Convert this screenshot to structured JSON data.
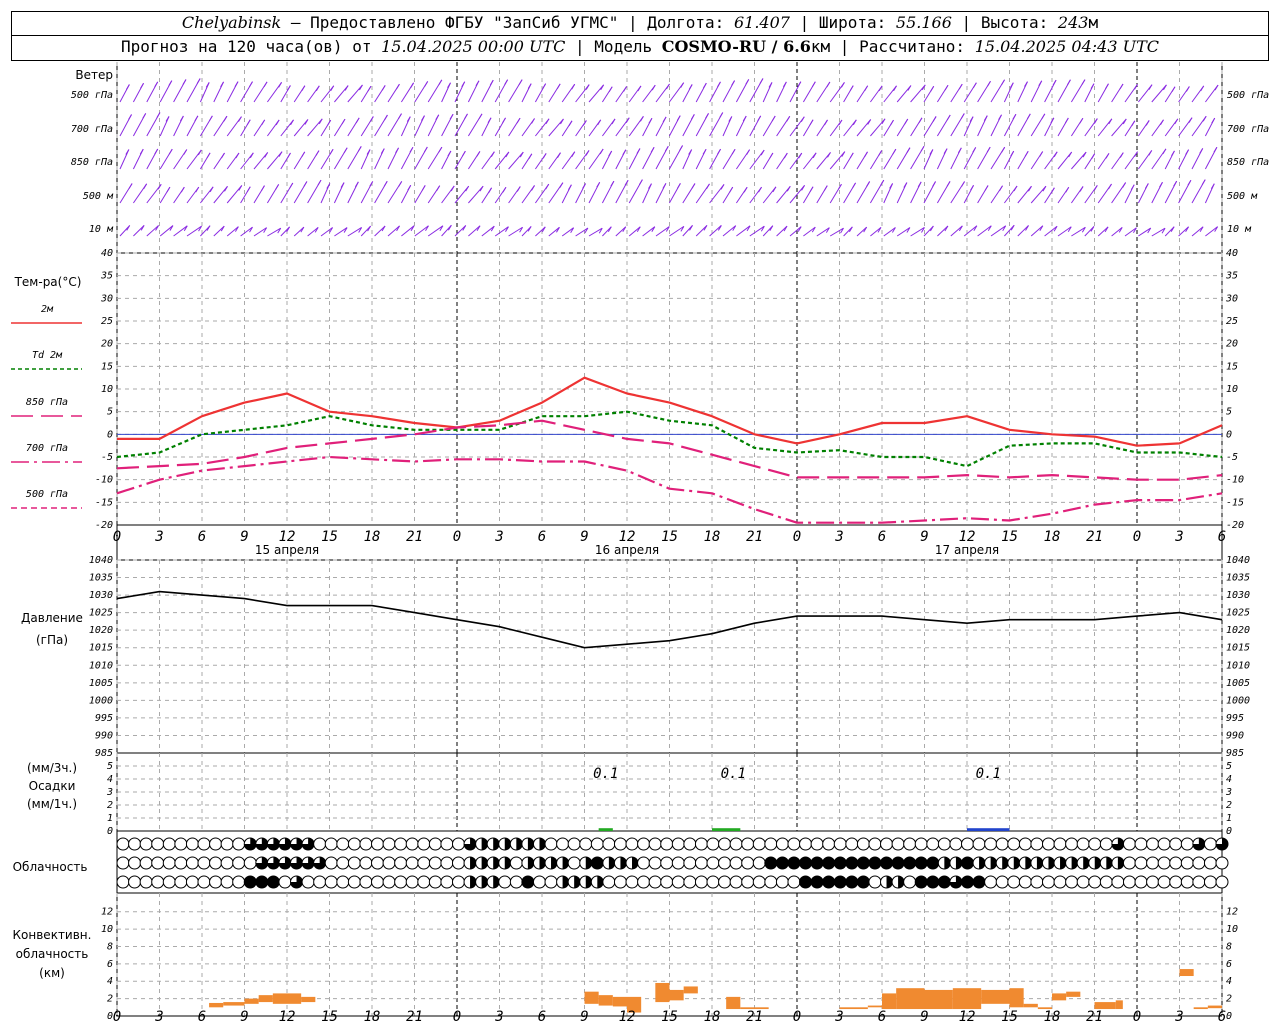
{
  "header": {
    "city": "Chelyabinsk",
    "provider": "— Предоставлено ФГБУ \"ЗапСиб УГМС\"",
    "lon_label": "Долгота:",
    "lon": "61.407",
    "lat_label": "Широта:",
    "lat": "55.166",
    "alt_label": "Высота:",
    "alt": "243",
    "alt_unit": "м",
    "forecast_label": "Прогноз на 120 часа(ов) от",
    "forecast_from": "15.04.2025 00:00 UTC",
    "model_label": "Модель",
    "model": "COSMO-RU / 6.6",
    "model_unit": "км",
    "calc_label": "Рассчитано:",
    "calc_time": "15.04.2025 04:43 UTC"
  },
  "wind_panel": {
    "title": "Ветер",
    "levels": [
      "500 гПа",
      "700 гПа",
      "850 гПа",
      "500 м",
      "10  м"
    ],
    "color": "#8a2be2"
  },
  "x_axis": {
    "hour_ticks": [
      "0",
      "3",
      "6",
      "9",
      "12",
      "15",
      "18",
      "21",
      "0",
      "3",
      "6",
      "9",
      "12",
      "15",
      "18",
      "21",
      "0",
      "3",
      "6",
      "9",
      "12",
      "15",
      "18",
      "21",
      "0",
      "3",
      "6"
    ],
    "days": [
      "15 апреля",
      "16 апреля",
      "17 апреля"
    ]
  },
  "chart_data": [
    {
      "type": "line",
      "title": "Тем-ра(°С)",
      "ylim": [
        -20,
        40
      ],
      "yticks": [
        "-20",
        "-15",
        "-10",
        "-5",
        "0",
        "5",
        "10",
        "15",
        "20",
        "25",
        "30",
        "35",
        "40"
      ],
      "x_hours": [
        0,
        3,
        6,
        9,
        12,
        15,
        18,
        21,
        24,
        27,
        30,
        33,
        36,
        39,
        42,
        45,
        48,
        51,
        54,
        57,
        60,
        63,
        66,
        69,
        72,
        75,
        78
      ],
      "series": [
        {
          "name": "2м",
          "color": "#ee3333",
          "dash": "",
          "values": [
            -1,
            -1,
            4,
            7,
            9,
            5,
            4,
            2.5,
            1.5,
            3,
            7,
            12.5,
            9,
            7,
            4,
            0,
            -2,
            0,
            2.5,
            2.5,
            4,
            1,
            0,
            -0.5,
            -2.5,
            -2,
            2
          ]
        },
        {
          "name": "Td 2м",
          "color": "#008000",
          "dash": "4 3",
          "values": [
            -5,
            -4,
            0,
            1,
            2,
            4,
            2,
            1,
            1,
            1,
            4,
            4,
            5,
            3,
            2,
            -3,
            -4,
            -3.5,
            -5,
            -5,
            -7,
            -2.5,
            -2,
            -2,
            -4,
            -4,
            -5
          ]
        },
        {
          "name": "850 гПа",
          "color": "#e0207a",
          "dash": "22 8",
          "values": [
            -7.5,
            -7,
            -6.5,
            -5,
            -3,
            -2,
            -1,
            0,
            1.5,
            2,
            3,
            1,
            -1,
            -2,
            -4.5,
            -7,
            -9.5,
            -9.5,
            -9.5,
            -9.5,
            -9,
            -9.5,
            -9,
            -9.5,
            -10,
            -10,
            -9
          ]
        },
        {
          "name": "700 гПа",
          "color": "#e0207a",
          "dash": "18 5 3 5",
          "values": [
            -13,
            -10,
            -8,
            -7,
            -6,
            -5,
            -5.5,
            -6,
            -5.5,
            -5.5,
            -6,
            -6,
            -8,
            -12,
            -13,
            -16.5,
            -19.5,
            -19.5,
            -19.5,
            -19,
            -18.5,
            -19,
            -17.5,
            -15.5,
            -14.5,
            -14.5,
            -13
          ]
        },
        {
          "name": "500 гПа",
          "color": "#e0207a",
          "dash": "6 4",
          "values": []
        }
      ]
    },
    {
      "type": "line",
      "title": "Давление",
      "ylabel": "(гПа)",
      "ylim": [
        985,
        1040
      ],
      "yticks": [
        "985",
        "990",
        "995",
        "1000",
        "1005",
        "1010",
        "1015",
        "1020",
        "1025",
        "1030",
        "1035",
        "1040"
      ],
      "x_hours": [
        0,
        3,
        6,
        9,
        12,
        15,
        18,
        21,
        24,
        27,
        30,
        33,
        36,
        39,
        42,
        45,
        48,
        51,
        54,
        57,
        60,
        63,
        66,
        69,
        72,
        75,
        78
      ],
      "series": [
        {
          "name": "",
          "color": "#000000",
          "values": [
            1029,
            1031,
            1030,
            1029,
            1027,
            1027,
            1027,
            1025,
            1023,
            1021,
            1018,
            1015,
            1016,
            1017,
            1019,
            1022,
            1024,
            1024,
            1024,
            1023,
            1022,
            1023,
            1023,
            1023,
            1024,
            1025,
            1023
          ]
        }
      ]
    },
    {
      "type": "bar",
      "title": "Осадки",
      "ylabel_3h": "(мм/3ч.)",
      "ylabel_1h": "(мм/1ч.)",
      "ylim": [
        0,
        5
      ],
      "yticks": [
        "0",
        "1",
        "2",
        "3",
        "4",
        "5"
      ],
      "annotations": [
        {
          "x_hour": 34.5,
          "text": "0.1"
        },
        {
          "x_hour": 43.5,
          "text": "0.1"
        },
        {
          "x_hour": 61.5,
          "text": "0.1"
        }
      ],
      "bars": [
        {
          "x_from": 34,
          "x_to": 35,
          "value": 0.1,
          "color": "#22aa22"
        },
        {
          "x_from": 42,
          "x_to": 44,
          "value": 0.1,
          "color": "#22aa22"
        },
        {
          "x_from": 60,
          "x_to": 63,
          "value": 0.1,
          "color": "#2244cc"
        }
      ]
    },
    {
      "type": "table",
      "title": "Облачность",
      "rows": [
        "000000000003333330000000000000322222200000000000000000000000000000000000000000000000003000000303",
        "000000000000333333000000000000222202222024222000000000004444444444444442242222222222222000000000",
        "000000000004440300000000000000222004002222000000000000000004444440220444344000000000000000000000"
      ]
    },
    {
      "type": "bar",
      "title": "Конвективн.",
      "ylabel": "облачность",
      "yunit": "(км)",
      "ylim": [
        0,
        13
      ],
      "yticks": [
        "0",
        "2",
        "4",
        "6",
        "8",
        "10",
        "12"
      ],
      "color": "#f08a30",
      "bars": [
        {
          "x_from": 6.5,
          "x_to": 7.5,
          "bottom": 1,
          "top": 1.5
        },
        {
          "x_from": 7.5,
          "x_to": 9,
          "bottom": 1.2,
          "top": 1.6
        },
        {
          "x_from": 9,
          "x_to": 10,
          "bottom": 1.4,
          "top": 2
        },
        {
          "x_from": 10,
          "x_to": 11,
          "bottom": 1.6,
          "top": 2.4
        },
        {
          "x_from": 11,
          "x_to": 13,
          "bottom": 1.4,
          "top": 2.6
        },
        {
          "x_from": 13,
          "x_to": 14,
          "bottom": 1.6,
          "top": 2.2
        },
        {
          "x_from": 33,
          "x_to": 34,
          "bottom": 1.4,
          "top": 2.8
        },
        {
          "x_from": 34,
          "x_to": 35,
          "bottom": 1.2,
          "top": 2.4
        },
        {
          "x_from": 35,
          "x_to": 36,
          "bottom": 1.1,
          "top": 2.2
        },
        {
          "x_from": 36,
          "x_to": 37,
          "bottom": 0.4,
          "top": 2.2
        },
        {
          "x_from": 38,
          "x_to": 39,
          "bottom": 1.6,
          "top": 3.8
        },
        {
          "x_from": 39,
          "x_to": 40,
          "bottom": 1.8,
          "top": 3
        },
        {
          "x_from": 40,
          "x_to": 41,
          "bottom": 2.6,
          "top": 3.4
        },
        {
          "x_from": 43,
          "x_to": 44,
          "bottom": 0.8,
          "top": 2.2
        },
        {
          "x_from": 44,
          "x_to": 46,
          "bottom": 0.8,
          "top": 1
        },
        {
          "x_from": 51,
          "x_to": 53,
          "bottom": 0.8,
          "top": 1
        },
        {
          "x_from": 53,
          "x_to": 54,
          "bottom": 1,
          "top": 1.2
        },
        {
          "x_from": 54,
          "x_to": 55,
          "bottom": 0.8,
          "top": 2.6
        },
        {
          "x_from": 55,
          "x_to": 57,
          "bottom": 0.8,
          "top": 3.2
        },
        {
          "x_from": 57,
          "x_to": 59,
          "bottom": 0.8,
          "top": 3
        },
        {
          "x_from": 59,
          "x_to": 61,
          "bottom": 0.8,
          "top": 3.2
        },
        {
          "x_from": 61,
          "x_to": 63,
          "bottom": 1.4,
          "top": 3
        },
        {
          "x_from": 63,
          "x_to": 64,
          "bottom": 1,
          "top": 3.2
        },
        {
          "x_from": 64,
          "x_to": 65,
          "bottom": 1,
          "top": 1.4
        },
        {
          "x_from": 65,
          "x_to": 66,
          "bottom": 0.8,
          "top": 1
        },
        {
          "x_from": 66,
          "x_to": 67,
          "bottom": 1.8,
          "top": 2.6
        },
        {
          "x_from": 67,
          "x_to": 68,
          "bottom": 2.2,
          "top": 2.8
        },
        {
          "x_from": 69,
          "x_to": 70.5,
          "bottom": 0.8,
          "top": 1.6
        },
        {
          "x_from": 70.5,
          "x_to": 71,
          "bottom": 0.8,
          "top": 1.8
        },
        {
          "x_from": 75,
          "x_to": 76,
          "bottom": 4.6,
          "top": 5.4
        },
        {
          "x_from": 76,
          "x_to": 77,
          "bottom": 0.8,
          "top": 1
        },
        {
          "x_from": 77,
          "x_to": 78,
          "bottom": 0.9,
          "top": 1.2
        }
      ]
    }
  ]
}
